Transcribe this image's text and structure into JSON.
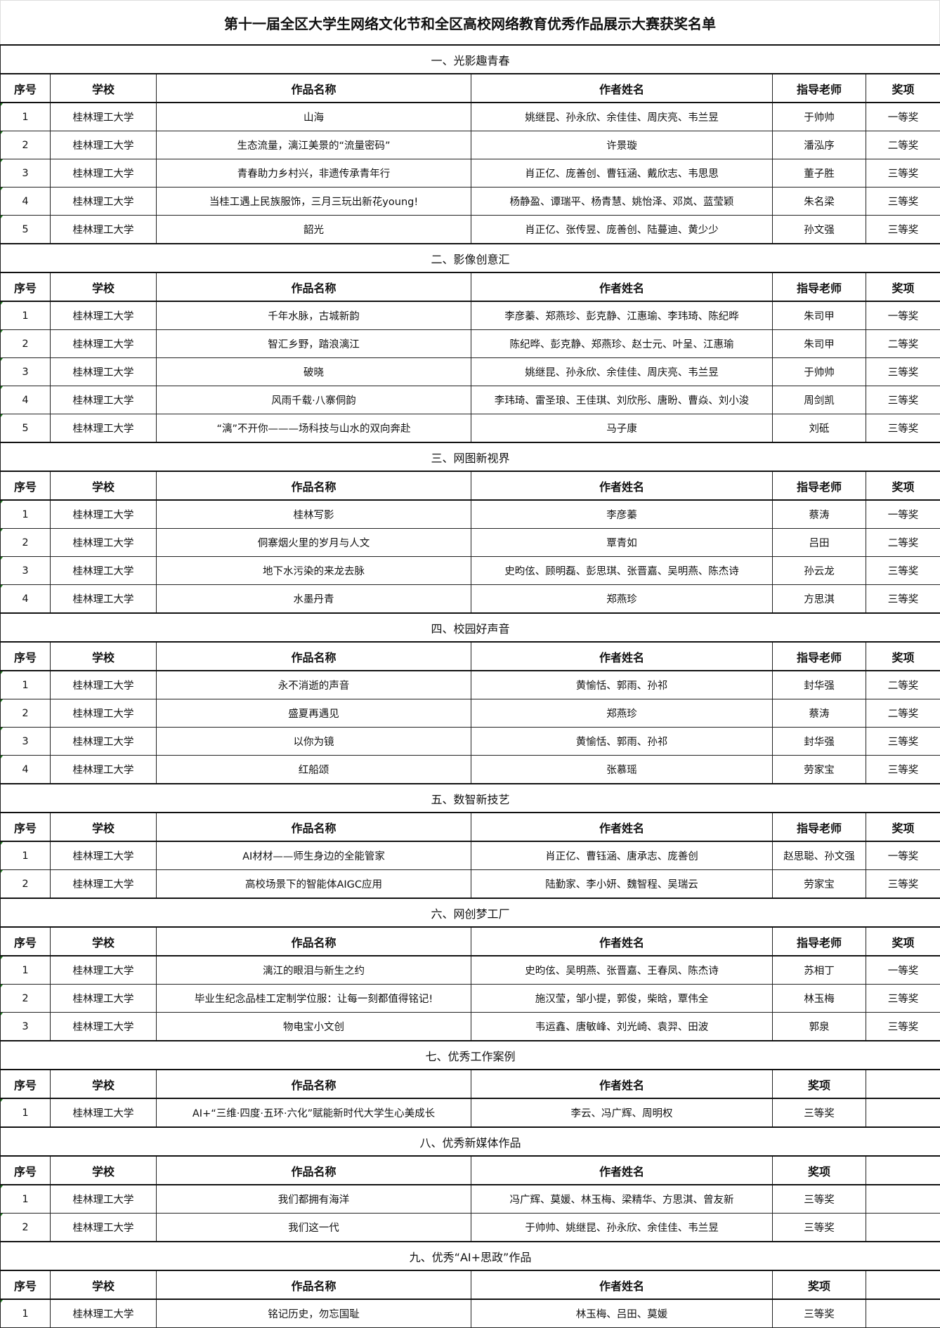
{
  "title": "第十一届全区大学生网络文化节和全区高校网络教育优秀作品展示大赛获奖名单",
  "sections": [
    {
      "name": "一、光影趣青春",
      "headers": [
        "序号",
        "学校",
        "作品名称",
        "作者姓名",
        "指导老师",
        "奖项"
      ],
      "rows": [
        [
          "1",
          "桂林理工大学",
          "山海",
          "姚继昆、孙永欣、余佳佳、周庆亮、韦兰昱",
          "于帅帅",
          "一等奖"
        ],
        [
          "2",
          "桂林理工大学",
          "生态流量，漓江美景的“流量密码”",
          "许景璇",
          "潘泓序",
          "二等奖"
        ],
        [
          "3",
          "桂林理工大学",
          "青春助力乡村兴，非遗传承青年行",
          "肖正亿、庞善创、曹钰涵、戴欣志、韦思思",
          "董子胜",
          "三等奖"
        ],
        [
          "4",
          "桂林理工大学",
          "当桂工遇上民族服饰，三月三玩出新花young!",
          "杨静盈、谭瑞平、杨青慧、姚怡泽、邓岚、蓝莹颖",
          "朱名梁",
          "三等奖"
        ],
        [
          "5",
          "桂林理工大学",
          "韶光",
          "肖正亿、张传昱、庞善创、陆蔓迪、黄少少",
          "孙文强",
          "三等奖"
        ]
      ]
    },
    {
      "name": "二、影像创意汇",
      "headers": [
        "序号",
        "学校",
        "作品名称",
        "作者姓名",
        "指导老师",
        "奖项"
      ],
      "rows": [
        [
          "1",
          "桂林理工大学",
          "千年水脉，古城新韵",
          "李彦蓁、郑燕珍、彭克静、江惠瑜、李玮琦、陈纪晔",
          "朱司甲",
          "一等奖"
        ],
        [
          "2",
          "桂林理工大学",
          "智汇乡野，踏浪漓江",
          "陈纪晔、彭克静、郑燕珍、赵士元、叶呈、江惠瑜",
          "朱司甲",
          "二等奖"
        ],
        [
          "3",
          "桂林理工大学",
          "破晓",
          "姚继昆、孙永欣、余佳佳、周庆亮、韦兰昱",
          "于帅帅",
          "三等奖"
        ],
        [
          "4",
          "桂林理工大学",
          "风雨千载·八寨侗韵",
          "李玮琦、雷圣琅、王佳琪、刘欣彤、唐盼、曹焱、刘小浚",
          "周剑凯",
          "三等奖"
        ],
        [
          "5",
          "桂林理工大学",
          "“漓”不开你———场科技与山水的双向奔赴",
          "马子康",
          "刘砥",
          "三等奖"
        ]
      ]
    },
    {
      "name": "三、网图新视界",
      "headers": [
        "序号",
        "学校",
        "作品名称",
        "作者姓名",
        "指导老师",
        "奖项"
      ],
      "rows": [
        [
          "1",
          "桂林理工大学",
          "桂林写影",
          "李彦蓁",
          "蔡涛",
          "一等奖"
        ],
        [
          "2",
          "桂林理工大学",
          "侗寨烟火里的岁月与人文",
          "覃青如",
          "吕田",
          "二等奖"
        ],
        [
          "3",
          "桂林理工大学",
          "地下水污染的来龙去脉",
          "史昀伭、顾明磊、彭思琪、张晋嘉、吴明燕、陈杰诗",
          "孙云龙",
          "三等奖"
        ],
        [
          "4",
          "桂林理工大学",
          "水墨丹青",
          "郑燕珍",
          "方思淇",
          "三等奖"
        ]
      ]
    },
    {
      "name": "四、校园好声音",
      "headers": [
        "序号",
        "学校",
        "作品名称",
        "作者姓名",
        "指导老师",
        "奖项"
      ],
      "rows": [
        [
          "1",
          "桂林理工大学",
          "永不消逝的声音",
          "黄愉恬、郭雨、孙祁",
          "封华强",
          "二等奖"
        ],
        [
          "2",
          "桂林理工大学",
          "盛夏再遇见",
          "郑燕珍",
          "蔡涛",
          "二等奖"
        ],
        [
          "3",
          "桂林理工大学",
          "以你为镜",
          "黄愉恬、郭雨、孙祁",
          "封华强",
          "三等奖"
        ],
        [
          "4",
          "桂林理工大学",
          "红船颂",
          "张慕瑶",
          "劳家宝",
          "三等奖"
        ]
      ]
    },
    {
      "name": "五、数智新技艺",
      "headers": [
        "序号",
        "学校",
        "作品名称",
        "作者姓名",
        "指导老师",
        "奖项"
      ],
      "rows": [
        [
          "1",
          "桂林理工大学",
          "AI材材——师生身边的全能管家",
          "肖正亿、曹钰涵、唐承志、庞善创",
          "赵思聪、孙文强",
          "一等奖"
        ],
        [
          "2",
          "桂林理工大学",
          "高校场景下的智能体AIGC应用",
          "陆勤家、李小妍、魏智程、吴瑞云",
          "劳家宝",
          "三等奖"
        ]
      ]
    },
    {
      "name": "六、网创梦工厂",
      "headers": [
        "序号",
        "学校",
        "作品名称",
        "作者姓名",
        "指导老师",
        "奖项"
      ],
      "rows": [
        [
          "1",
          "桂林理工大学",
          "漓江的眼泪与新生之约",
          "史昀伭、吴明燕、张晋嘉、王春凤、陈杰诗",
          "苏相丁",
          "一等奖"
        ],
        [
          "2",
          "桂林理工大学",
          "毕业生纪念品桂工定制学位服：让每一刻都值得铭记!",
          "施汉莹，邹小提，郭俊，柴晗，覃伟全",
          "林玉梅",
          "三等奖"
        ],
        [
          "3",
          "桂林理工大学",
          "物电宝小文创",
          "韦运鑫、唐敏峰、刘光崎、袁羿、田波",
          "郭泉",
          "三等奖"
        ]
      ]
    },
    {
      "name": "七、优秀工作案例",
      "headers": [
        "序号",
        "学校",
        "作品名称",
        "作者姓名",
        "奖项",
        ""
      ],
      "rows": [
        [
          "1",
          "桂林理工大学",
          "AI+“三维·四度·五环·六化”赋能新时代大学生心美成长",
          "李云、冯广辉、周明权",
          "三等奖",
          ""
        ]
      ]
    },
    {
      "name": "八、优秀新媒体作品",
      "headers": [
        "序号",
        "学校",
        "作品名称",
        "作者姓名",
        "奖项",
        ""
      ],
      "rows": [
        [
          "1",
          "桂林理工大学",
          "我们都拥有海洋",
          "冯广辉、莫媛、林玉梅、梁精华、方思淇、曾友新",
          "三等奖",
          ""
        ],
        [
          "2",
          "桂林理工大学",
          "我们这一代",
          "于帅帅、姚继昆、孙永欣、余佳佳、韦兰昱",
          "三等奖",
          ""
        ]
      ]
    },
    {
      "name": "九、优秀“AI+思政”作品",
      "headers": [
        "序号",
        "学校",
        "作品名称",
        "作者姓名",
        "奖项",
        ""
      ],
      "rows": [
        [
          "1",
          "桂林理工大学",
          "铭记历史，勿忘国耻",
          "林玉梅、吕田、莫媛",
          "三等奖",
          ""
        ]
      ]
    }
  ]
}
